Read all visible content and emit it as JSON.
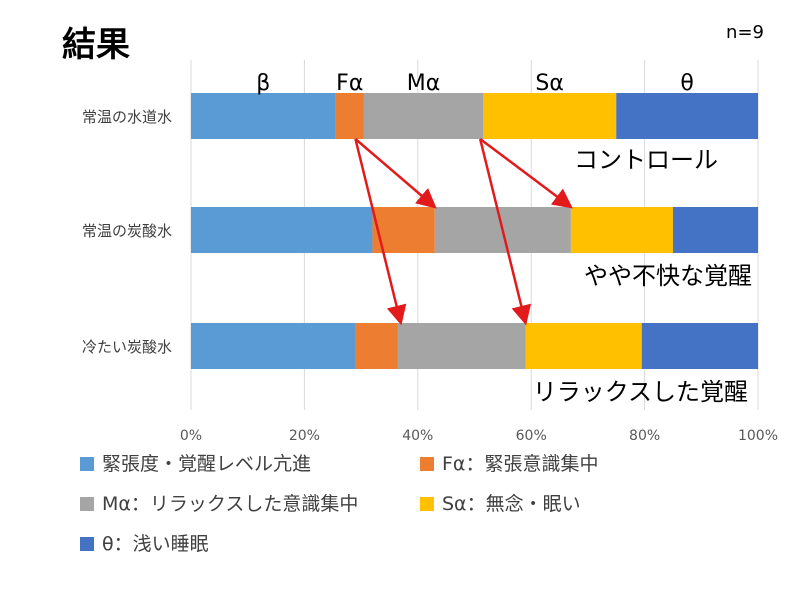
{
  "slide": {
    "title": "結果",
    "sample_size": "n=9"
  },
  "chart_data": {
    "type": "bar",
    "orientation": "horizontal",
    "stacked": "percent",
    "categories": [
      "常温の水道水",
      "常温の炭酸水",
      "冷たい炭酸水"
    ],
    "series": [
      {
        "name": "緊張度・覚醒レベル亢進",
        "band_label": "β",
        "color": "#5B9BD5",
        "values": [
          25.5,
          32,
          29
        ]
      },
      {
        "name": "Fα：緊張意識集中",
        "band_label": "Fα",
        "color": "#ED7D31",
        "values": [
          5,
          11,
          7.5
        ]
      },
      {
        "name": "Mα：リラックスした意識集中",
        "band_label": "Mα",
        "color": "#A5A5A5",
        "values": [
          21,
          24,
          22.5
        ]
      },
      {
        "name": "Sα：無念・眠い",
        "band_label": "Sα",
        "color": "#FFC000",
        "values": [
          23.5,
          18,
          20.5
        ]
      },
      {
        "name": "θ：浅い睡眠",
        "band_label": "θ",
        "color": "#4472C4",
        "values": [
          25,
          15,
          20.5
        ]
      }
    ],
    "xlim": [
      0,
      100
    ],
    "x_ticks": [
      "0%",
      "20%",
      "40%",
      "60%",
      "80%",
      "100%"
    ],
    "grid": "vertical",
    "legend_position": "bottom",
    "annotations": {
      "row_labels": [
        "コントロール",
        "やや不快な覚醒",
        "リラックスした覚醒"
      ],
      "arrows_color": "#E31A1C",
      "arrows": [
        {
          "from": {
            "row": 0,
            "value": 29
          },
          "to": {
            "row": 1,
            "value": 43
          }
        },
        {
          "from": {
            "row": 0,
            "value": 29
          },
          "to": {
            "row": 2,
            "value": 37
          }
        },
        {
          "from": {
            "row": 0,
            "value": 51
          },
          "to": {
            "row": 1,
            "value": 67
          }
        },
        {
          "from": {
            "row": 0,
            "value": 51
          },
          "to": {
            "row": 2,
            "value": 59
          }
        }
      ]
    }
  }
}
